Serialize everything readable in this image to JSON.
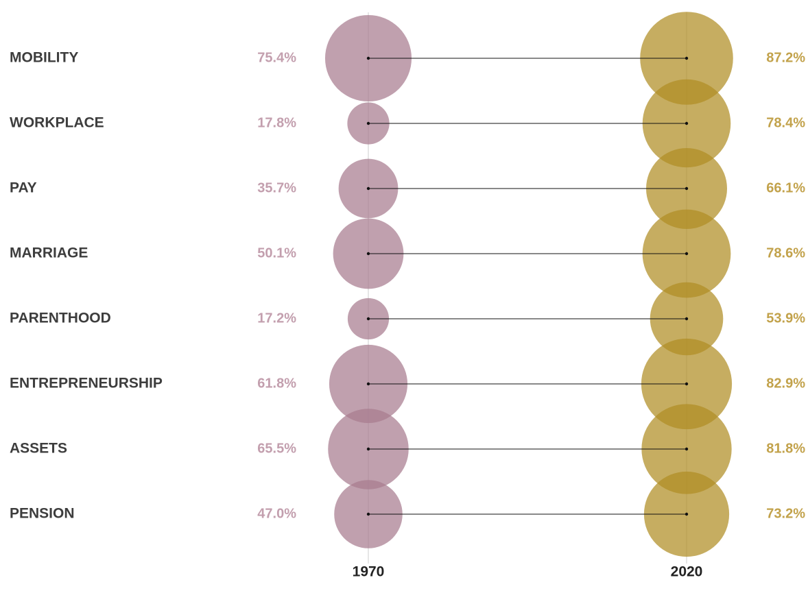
{
  "chart_data": {
    "type": "dumbbell",
    "categories": [
      "MOBILITY",
      "WORKPLACE",
      "PAY",
      "MARRIAGE",
      "PARENTHOOD",
      "ENTREPRENEURSHIP",
      "ASSETS",
      "PENSION"
    ],
    "series": [
      {
        "name": "1970",
        "color": "#a77b8f",
        "label_color": "#c39fae",
        "values": [
          75.4,
          17.8,
          35.7,
          50.1,
          17.2,
          61.8,
          65.5,
          47.0
        ],
        "value_labels": [
          "75.4%",
          "17.8%",
          "35.7%",
          "50.1%",
          "17.2%",
          "61.8%",
          "65.5%",
          "47.0%"
        ]
      },
      {
        "name": "2020",
        "color": "#b08d24",
        "label_color": "#c2a24b",
        "values": [
          87.2,
          78.4,
          66.1,
          78.6,
          53.9,
          82.9,
          81.8,
          73.2
        ],
        "value_labels": [
          "87.2%",
          "78.4%",
          "66.1%",
          "78.6%",
          "53.9%",
          "82.9%",
          "81.8%",
          "73.2%"
        ]
      }
    ]
  }
}
